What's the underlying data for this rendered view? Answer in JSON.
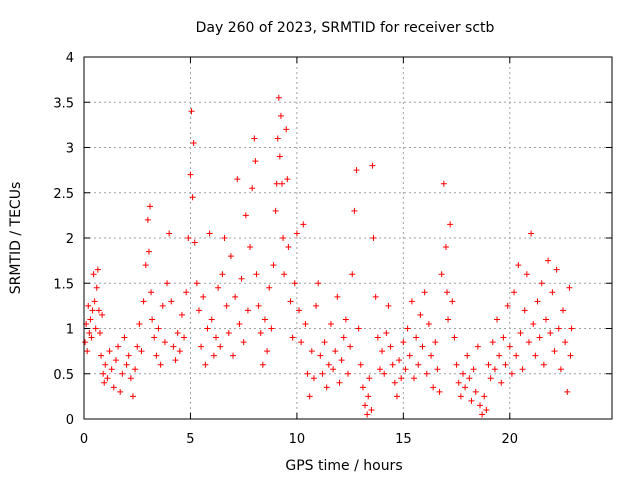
{
  "chart_data": {
    "type": "scatter",
    "title": "Day 260 of 2023, SRMTID for receiver sctb",
    "xlabel": "GPS time / hours",
    "ylabel": "SRMTID / TECUs",
    "xlim": [
      0,
      24.8
    ],
    "ylim": [
      0,
      4
    ],
    "xticks": [
      0,
      5,
      10,
      15,
      20
    ],
    "xtick_labels": [
      "0",
      "5",
      "10",
      "15",
      "20"
    ],
    "yticks": [
      0,
      0.5,
      1,
      1.5,
      2,
      2.5,
      3,
      3.5,
      4
    ],
    "ytick_labels": [
      "0",
      "0.5",
      "1",
      "1.5",
      "2",
      "2.5",
      "3",
      "3.5",
      "4"
    ],
    "grid": true,
    "marker": "+",
    "color": "#ff0000",
    "series": [
      {
        "name": "SRMTID",
        "points": [
          [
            0.05,
            0.85
          ],
          [
            0.1,
            1.05
          ],
          [
            0.15,
            0.75
          ],
          [
            0.2,
            1.25
          ],
          [
            0.25,
            0.95
          ],
          [
            0.3,
            1.1
          ],
          [
            0.35,
            0.9
          ],
          [
            0.4,
            1.2
          ],
          [
            0.45,
            1.6
          ],
          [
            0.5,
            1.3
          ],
          [
            0.55,
            1.0
          ],
          [
            0.6,
            1.45
          ],
          [
            0.65,
            1.65
          ],
          [
            0.7,
            1.2
          ],
          [
            0.75,
            0.95
          ],
          [
            0.8,
            0.7
          ],
          [
            0.85,
            1.15
          ],
          [
            0.9,
            0.5
          ],
          [
            0.95,
            0.4
          ],
          [
            1.0,
            0.6
          ],
          [
            1.1,
            0.45
          ],
          [
            1.2,
            0.75
          ],
          [
            1.3,
            0.55
          ],
          [
            1.4,
            0.35
          ],
          [
            1.5,
            0.65
          ],
          [
            1.6,
            0.8
          ],
          [
            1.7,
            0.3
          ],
          [
            1.8,
            0.5
          ],
          [
            1.9,
            0.9
          ],
          [
            2.0,
            0.6
          ],
          [
            2.1,
            0.7
          ],
          [
            2.2,
            0.45
          ],
          [
            2.3,
            0.25
          ],
          [
            2.4,
            0.55
          ],
          [
            2.5,
            0.8
          ],
          [
            2.6,
            1.05
          ],
          [
            2.7,
            0.75
          ],
          [
            2.8,
            1.3
          ],
          [
            2.9,
            1.7
          ],
          [
            3.0,
            2.2
          ],
          [
            3.05,
            1.85
          ],
          [
            3.1,
            2.35
          ],
          [
            3.15,
            1.4
          ],
          [
            3.2,
            1.1
          ],
          [
            3.3,
            0.9
          ],
          [
            3.4,
            0.7
          ],
          [
            3.5,
            1.0
          ],
          [
            3.6,
            0.6
          ],
          [
            3.7,
            1.25
          ],
          [
            3.8,
            0.85
          ],
          [
            3.9,
            1.5
          ],
          [
            4.0,
            2.05
          ],
          [
            4.1,
            1.3
          ],
          [
            4.2,
            0.8
          ],
          [
            4.3,
            0.65
          ],
          [
            4.4,
            0.95
          ],
          [
            4.5,
            0.75
          ],
          [
            4.6,
            1.15
          ],
          [
            4.7,
            0.9
          ],
          [
            4.8,
            1.4
          ],
          [
            4.9,
            2.0
          ],
          [
            5.0,
            2.7
          ],
          [
            5.05,
            3.4
          ],
          [
            5.1,
            2.45
          ],
          [
            5.15,
            3.05
          ],
          [
            5.2,
            1.95
          ],
          [
            5.3,
            1.5
          ],
          [
            5.4,
            1.2
          ],
          [
            5.5,
            0.8
          ],
          [
            5.6,
            1.35
          ],
          [
            5.7,
            0.6
          ],
          [
            5.8,
            1.0
          ],
          [
            5.9,
            2.05
          ],
          [
            6.0,
            1.1
          ],
          [
            6.1,
            0.7
          ],
          [
            6.2,
            0.9
          ],
          [
            6.3,
            1.45
          ],
          [
            6.4,
            0.8
          ],
          [
            6.5,
            1.6
          ],
          [
            6.6,
            2.0
          ],
          [
            6.7,
            1.25
          ],
          [
            6.8,
            0.95
          ],
          [
            6.9,
            1.8
          ],
          [
            7.0,
            0.7
          ],
          [
            7.1,
            1.35
          ],
          [
            7.2,
            2.65
          ],
          [
            7.3,
            1.05
          ],
          [
            7.4,
            1.55
          ],
          [
            7.5,
            0.85
          ],
          [
            7.6,
            2.25
          ],
          [
            7.7,
            1.2
          ],
          [
            7.8,
            1.9
          ],
          [
            7.9,
            2.55
          ],
          [
            8.0,
            3.1
          ],
          [
            8.05,
            2.85
          ],
          [
            8.1,
            1.6
          ],
          [
            8.2,
            1.25
          ],
          [
            8.3,
            0.95
          ],
          [
            8.4,
            0.6
          ],
          [
            8.5,
            1.1
          ],
          [
            8.6,
            0.75
          ],
          [
            8.7,
            1.45
          ],
          [
            8.8,
            1.0
          ],
          [
            8.9,
            1.7
          ],
          [
            9.0,
            2.3
          ],
          [
            9.05,
            2.6
          ],
          [
            9.1,
            3.1
          ],
          [
            9.15,
            3.55
          ],
          [
            9.2,
            2.9
          ],
          [
            9.25,
            3.35
          ],
          [
            9.3,
            2.6
          ],
          [
            9.35,
            2.0
          ],
          [
            9.4,
            1.6
          ],
          [
            9.5,
            3.2
          ],
          [
            9.55,
            2.65
          ],
          [
            9.6,
            1.9
          ],
          [
            9.7,
            1.3
          ],
          [
            9.8,
            0.9
          ],
          [
            9.9,
            1.5
          ],
          [
            10.0,
            2.05
          ],
          [
            10.1,
            1.2
          ],
          [
            10.2,
            0.85
          ],
          [
            10.3,
            2.15
          ],
          [
            10.4,
            1.05
          ],
          [
            10.5,
            0.5
          ],
          [
            10.6,
            0.25
          ],
          [
            10.7,
            0.75
          ],
          [
            10.8,
            0.45
          ],
          [
            10.9,
            1.25
          ],
          [
            11.0,
            1.5
          ],
          [
            11.1,
            0.7
          ],
          [
            11.2,
            0.5
          ],
          [
            11.3,
            0.85
          ],
          [
            11.4,
            0.35
          ],
          [
            11.5,
            0.6
          ],
          [
            11.6,
            1.05
          ],
          [
            11.7,
            0.55
          ],
          [
            11.8,
            0.75
          ],
          [
            11.9,
            1.35
          ],
          [
            12.0,
            0.4
          ],
          [
            12.1,
            0.65
          ],
          [
            12.2,
            0.9
          ],
          [
            12.3,
            1.1
          ],
          [
            12.4,
            0.5
          ],
          [
            12.5,
            0.8
          ],
          [
            12.6,
            1.6
          ],
          [
            12.7,
            2.3
          ],
          [
            12.8,
            2.75
          ],
          [
            12.9,
            1.0
          ],
          [
            13.0,
            0.6
          ],
          [
            13.1,
            0.35
          ],
          [
            13.2,
            0.15
          ],
          [
            13.3,
            0.05
          ],
          [
            13.35,
            0.25
          ],
          [
            13.4,
            0.45
          ],
          [
            13.5,
            0.1
          ],
          [
            13.55,
            2.8
          ],
          [
            13.6,
            2.0
          ],
          [
            13.7,
            1.35
          ],
          [
            13.8,
            0.9
          ],
          [
            13.9,
            0.55
          ],
          [
            14.0,
            0.75
          ],
          [
            14.1,
            0.5
          ],
          [
            14.2,
            0.95
          ],
          [
            14.3,
            1.25
          ],
          [
            14.4,
            0.8
          ],
          [
            14.5,
            0.6
          ],
          [
            14.6,
            0.4
          ],
          [
            14.7,
            0.25
          ],
          [
            14.8,
            0.65
          ],
          [
            14.9,
            0.45
          ],
          [
            15.0,
            0.85
          ],
          [
            15.1,
            0.55
          ],
          [
            15.2,
            1.0
          ],
          [
            15.3,
            0.7
          ],
          [
            15.4,
            1.3
          ],
          [
            15.5,
            0.45
          ],
          [
            15.6,
            0.9
          ],
          [
            15.7,
            0.6
          ],
          [
            15.8,
            1.15
          ],
          [
            15.9,
            0.8
          ],
          [
            16.0,
            1.4
          ],
          [
            16.1,
            0.5
          ],
          [
            16.2,
            1.05
          ],
          [
            16.3,
            0.7
          ],
          [
            16.4,
            0.35
          ],
          [
            16.5,
            0.85
          ],
          [
            16.6,
            0.55
          ],
          [
            16.7,
            0.3
          ],
          [
            16.8,
            1.6
          ],
          [
            16.9,
            2.6
          ],
          [
            17.0,
            1.9
          ],
          [
            17.05,
            1.4
          ],
          [
            17.1,
            1.1
          ],
          [
            17.2,
            2.15
          ],
          [
            17.3,
            1.3
          ],
          [
            17.4,
            0.9
          ],
          [
            17.5,
            0.6
          ],
          [
            17.6,
            0.4
          ],
          [
            17.7,
            0.25
          ],
          [
            17.8,
            0.5
          ],
          [
            17.9,
            0.35
          ],
          [
            18.0,
            0.7
          ],
          [
            18.1,
            0.45
          ],
          [
            18.2,
            0.2
          ],
          [
            18.3,
            0.55
          ],
          [
            18.4,
            0.3
          ],
          [
            18.5,
            0.8
          ],
          [
            18.6,
            0.15
          ],
          [
            18.7,
            0.05
          ],
          [
            18.8,
            0.25
          ],
          [
            18.9,
            0.1
          ],
          [
            19.0,
            0.6
          ],
          [
            19.1,
            0.45
          ],
          [
            19.2,
            0.85
          ],
          [
            19.3,
            0.55
          ],
          [
            19.4,
            1.1
          ],
          [
            19.5,
            0.7
          ],
          [
            19.6,
            0.4
          ],
          [
            19.7,
            0.9
          ],
          [
            19.8,
            0.6
          ],
          [
            19.9,
            1.25
          ],
          [
            20.0,
            0.8
          ],
          [
            20.1,
            0.5
          ],
          [
            20.2,
            1.4
          ],
          [
            20.3,
            0.7
          ],
          [
            20.4,
            1.7
          ],
          [
            20.5,
            0.95
          ],
          [
            20.6,
            0.55
          ],
          [
            20.7,
            1.2
          ],
          [
            20.8,
            1.6
          ],
          [
            20.9,
            0.85
          ],
          [
            21.0,
            2.05
          ],
          [
            21.1,
            1.05
          ],
          [
            21.2,
            0.7
          ],
          [
            21.3,
            1.3
          ],
          [
            21.4,
            0.9
          ],
          [
            21.5,
            1.5
          ],
          [
            21.6,
            0.6
          ],
          [
            21.7,
            1.1
          ],
          [
            21.8,
            1.75
          ],
          [
            21.9,
            0.95
          ],
          [
            22.0,
            1.4
          ],
          [
            22.1,
            0.75
          ],
          [
            22.2,
            1.65
          ],
          [
            22.3,
            1.0
          ],
          [
            22.4,
            0.55
          ],
          [
            22.5,
            1.2
          ],
          [
            22.6,
            0.85
          ],
          [
            22.7,
            0.3
          ],
          [
            22.8,
            1.45
          ],
          [
            22.85,
            0.7
          ],
          [
            22.9,
            1.0
          ]
        ]
      }
    ]
  }
}
